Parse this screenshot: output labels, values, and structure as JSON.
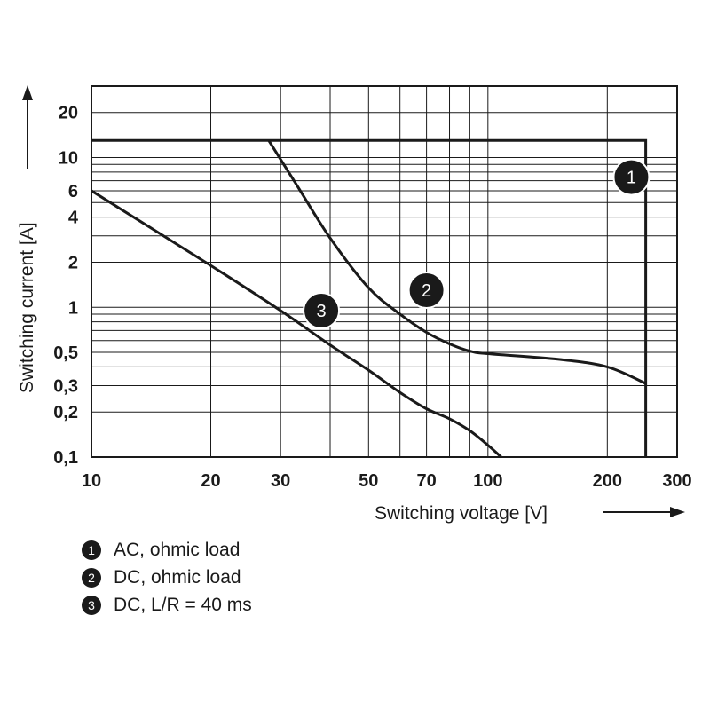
{
  "chart_data": {
    "type": "line",
    "scale": "log-log",
    "xlabel": "Switching voltage [V]",
    "ylabel": "Switching current [A]",
    "xlim": [
      10,
      300
    ],
    "ylim": [
      0.1,
      30
    ],
    "x_ticks": [
      {
        "value": 10,
        "label": "10"
      },
      {
        "value": 20,
        "label": "20"
      },
      {
        "value": 30,
        "label": "30"
      },
      {
        "value": 50,
        "label": "50"
      },
      {
        "value": 70,
        "label": "70"
      },
      {
        "value": 100,
        "label": "100"
      },
      {
        "value": 200,
        "label": "200"
      },
      {
        "value": 300,
        "label": "300"
      }
    ],
    "y_ticks": [
      {
        "value": 0.1,
        "label": "0,1"
      },
      {
        "value": 0.2,
        "label": "0,2"
      },
      {
        "value": 0.3,
        "label": "0,3"
      },
      {
        "value": 0.5,
        "label": "0,5"
      },
      {
        "value": 1,
        "label": "1"
      },
      {
        "value": 2,
        "label": "2"
      },
      {
        "value": 4,
        "label": "4"
      },
      {
        "value": 6,
        "label": "6"
      },
      {
        "value": 10,
        "label": "10"
      },
      {
        "value": 20,
        "label": "20"
      }
    ],
    "x_gridlines": [
      10,
      20,
      30,
      40,
      50,
      60,
      70,
      80,
      90,
      100,
      200,
      300
    ],
    "y_gridlines": [
      0.1,
      0.2,
      0.3,
      0.4,
      0.5,
      0.6,
      0.7,
      0.8,
      0.9,
      1,
      2,
      3,
      4,
      5,
      6,
      7,
      8,
      9,
      10,
      20,
      30
    ],
    "series": [
      {
        "id": "1",
        "name": "AC, ohmic load",
        "x": [
          10,
          250,
          250
        ],
        "y": [
          13,
          13,
          0.1
        ]
      },
      {
        "id": "2",
        "name": "DC, ohmic load",
        "x": [
          28,
          33,
          40,
          50,
          60,
          70,
          80,
          90,
          100,
          150,
          200,
          250
        ],
        "y": [
          13,
          6.5,
          2.9,
          1.35,
          0.9,
          0.68,
          0.57,
          0.51,
          0.49,
          0.45,
          0.4,
          0.31
        ],
        "smooth": true
      },
      {
        "id": "3",
        "name": "DC, L/R = 40 ms",
        "x": [
          10,
          20,
          30,
          40,
          50,
          60,
          70,
          80,
          90,
          100,
          108
        ],
        "y": [
          6,
          1.9,
          0.95,
          0.56,
          0.38,
          0.27,
          0.21,
          0.18,
          0.15,
          0.12,
          0.1
        ],
        "smooth": true
      }
    ],
    "annotations": [
      {
        "label": "1",
        "series": "1",
        "x": 230,
        "y": 7.4
      },
      {
        "label": "2",
        "series": "2",
        "x": 70,
        "y": 1.3
      },
      {
        "label": "3",
        "series": "3",
        "x": 38,
        "y": 0.95
      }
    ],
    "legend": [
      {
        "badge": "1",
        "label": "AC, ohmic load"
      },
      {
        "badge": "2",
        "label": "DC, ohmic load"
      },
      {
        "badge": "3",
        "label": "DC, L/R = 40 ms"
      }
    ]
  }
}
